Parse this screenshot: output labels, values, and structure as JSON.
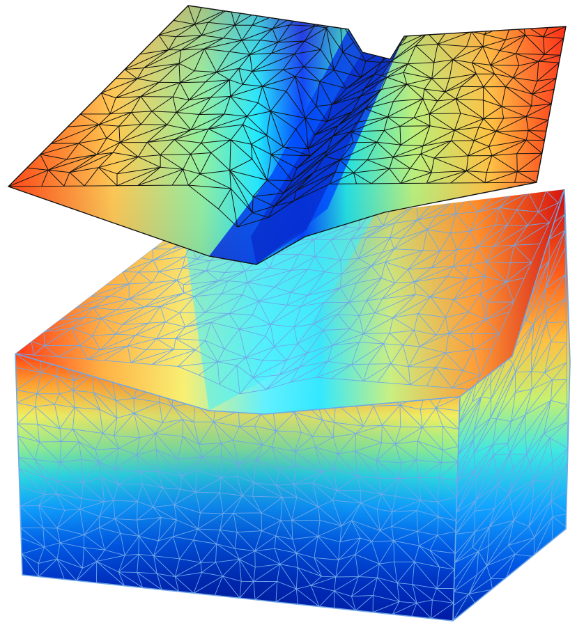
{
  "figure": {
    "colormap": "jet",
    "colormap_stops": [
      "#00008f",
      "#0000ff",
      "#0080ff",
      "#00ffff",
      "#80ff80",
      "#ffff00",
      "#ff8000",
      "#ff0000",
      "#800000"
    ],
    "surface_edge_color": "#111111",
    "volume_edge_color": "#6fa8e8",
    "background": "#ffffff"
  }
}
